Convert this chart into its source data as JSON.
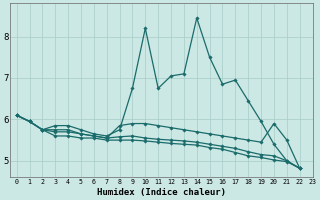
{
  "xlabel": "Humidex (Indice chaleur)",
  "background_color": "#cce8e4",
  "line_color": "#1a6b6b",
  "grid_color": "#a8ccc8",
  "xlim": [
    -0.5,
    23
  ],
  "ylim": [
    4.6,
    8.8
  ],
  "xticks": [
    0,
    1,
    2,
    3,
    4,
    5,
    6,
    7,
    8,
    9,
    10,
    11,
    12,
    13,
    14,
    15,
    16,
    17,
    18,
    19,
    20,
    21,
    22,
    23
  ],
  "yticks": [
    5,
    6,
    7,
    8
  ],
  "series": {
    "max": [
      6.1,
      5.95,
      5.75,
      5.85,
      5.85,
      5.75,
      5.65,
      5.6,
      5.75,
      6.75,
      8.2,
      6.75,
      7.05,
      7.1,
      8.45,
      7.5,
      6.85,
      6.95,
      6.45,
      5.95,
      5.4,
      5.0,
      4.82
    ],
    "wave": [
      6.1,
      5.95,
      5.75,
      5.75,
      5.75,
      5.65,
      5.6,
      5.55,
      5.85,
      5.9,
      5.9,
      5.85,
      5.8,
      5.75,
      5.7,
      5.65,
      5.6,
      5.55,
      5.5,
      5.45,
      5.9,
      5.5,
      4.82
    ],
    "mean": [
      6.1,
      5.95,
      5.75,
      5.7,
      5.7,
      5.65,
      5.6,
      5.55,
      5.58,
      5.6,
      5.55,
      5.52,
      5.5,
      5.48,
      5.45,
      5.4,
      5.35,
      5.3,
      5.22,
      5.15,
      5.12,
      5.0,
      4.82
    ],
    "min": [
      6.1,
      5.95,
      5.75,
      5.6,
      5.6,
      5.55,
      5.55,
      5.5,
      5.5,
      5.5,
      5.48,
      5.45,
      5.42,
      5.4,
      5.38,
      5.32,
      5.28,
      5.2,
      5.12,
      5.08,
      5.02,
      4.98,
      4.82
    ]
  }
}
